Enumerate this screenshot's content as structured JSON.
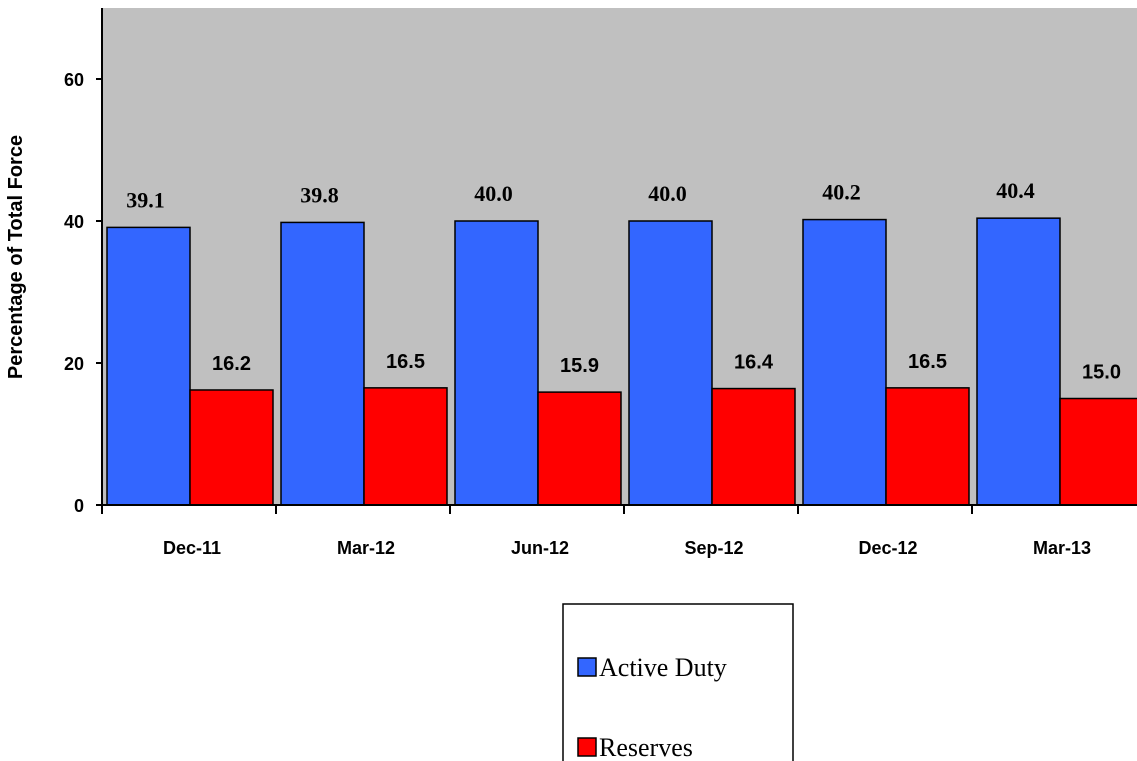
{
  "chart_data": {
    "type": "bar",
    "categories": [
      "Dec-11",
      "Mar-12",
      "Jun-12",
      "Sep-12",
      "Dec-12",
      "Mar-13"
    ],
    "series": [
      {
        "name": "Active Duty",
        "values": [
          39.1,
          39.8,
          40.0,
          40.0,
          40.2,
          40.4
        ],
        "labels": [
          "39.1",
          "39.8",
          "40.0",
          "40.0",
          "40.2",
          "40.4"
        ],
        "color": "#3366ff"
      },
      {
        "name": "Reserves",
        "values": [
          16.2,
          16.5,
          15.9,
          16.4,
          16.5,
          15.0
        ],
        "labels": [
          "16.2",
          "16.5",
          "15.9",
          "16.4",
          "16.5",
          "15.0"
        ],
        "color": "#ff0000"
      }
    ],
    "ylabel": "Percentage of Total Force",
    "ylim": [
      0,
      70
    ],
    "yticks": [
      0,
      20,
      40,
      60
    ],
    "ytick_labels": [
      "0",
      "20",
      "40",
      "60"
    ],
    "plot_background": "#c0c0c0",
    "legend_position": "bottom-center"
  }
}
